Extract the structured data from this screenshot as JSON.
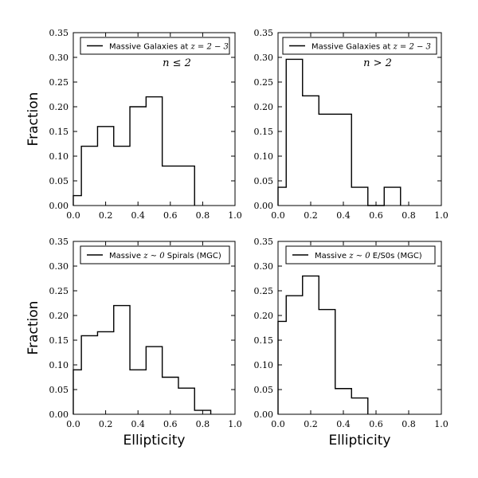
{
  "figure": {
    "ylabel": "Fraction",
    "xlabel": "Ellipticity"
  },
  "chart_data": [
    {
      "type": "histogram-step",
      "panel": "top-left",
      "legend": {
        "prefix": "Massive Galaxies at ",
        "math": "z = 2 − 3"
      },
      "annotation": "n ≤ 2",
      "bin_edges": [
        0.0,
        0.05,
        0.15,
        0.25,
        0.35,
        0.45,
        0.55,
        0.65,
        0.75
      ],
      "values": [
        0.02,
        0.12,
        0.16,
        0.12,
        0.2,
        0.22,
        0.08,
        0.08
      ],
      "xlim": [
        0.0,
        1.0
      ],
      "ylim": [
        0.0,
        0.35
      ],
      "xticks": [
        "0.0",
        "0.2",
        "0.4",
        "0.6",
        "0.8",
        "1.0"
      ],
      "yticks": [
        "0.00",
        "0.05",
        "0.10",
        "0.15",
        "0.20",
        "0.25",
        "0.30",
        "0.35"
      ],
      "ylabel": "Fraction",
      "xlabel": ""
    },
    {
      "type": "histogram-step",
      "panel": "top-right",
      "legend": {
        "prefix": "Massive Galaxies at ",
        "math": "z = 2 − 3"
      },
      "annotation": "n > 2",
      "bin_edges": [
        0.0,
        0.05,
        0.15,
        0.25,
        0.35,
        0.45,
        0.55,
        0.65,
        0.75
      ],
      "values": [
        0.037,
        0.296,
        0.222,
        0.185,
        0.185,
        0.037,
        0.0,
        0.037
      ],
      "xlim": [
        0.0,
        1.0
      ],
      "ylim": [
        0.0,
        0.35
      ],
      "xticks": [
        "0.0",
        "0.2",
        "0.4",
        "0.6",
        "0.8",
        "1.0"
      ],
      "yticks": [
        "0.00",
        "0.05",
        "0.10",
        "0.15",
        "0.20",
        "0.25",
        "0.30",
        "0.35"
      ],
      "ylabel": "",
      "xlabel": ""
    },
    {
      "type": "histogram-step",
      "panel": "bottom-left",
      "legend": {
        "prefix": "Massive ",
        "math": "z ∼ 0",
        "suffix": " Spirals  (MGC)"
      },
      "annotation": "",
      "bin_edges": [
        0.0,
        0.05,
        0.15,
        0.25,
        0.35,
        0.45,
        0.55,
        0.65,
        0.75,
        0.85
      ],
      "values": [
        0.09,
        0.159,
        0.167,
        0.22,
        0.09,
        0.137,
        0.075,
        0.053,
        0.008
      ],
      "xlim": [
        0.0,
        1.0
      ],
      "ylim": [
        0.0,
        0.35
      ],
      "xticks": [
        "0.0",
        "0.2",
        "0.4",
        "0.6",
        "0.8",
        "1.0"
      ],
      "yticks": [
        "0.00",
        "0.05",
        "0.10",
        "0.15",
        "0.20",
        "0.25",
        "0.30",
        "0.35"
      ],
      "ylabel": "Fraction",
      "xlabel": "Ellipticity"
    },
    {
      "type": "histogram-step",
      "panel": "bottom-right",
      "legend": {
        "prefix": "Massive ",
        "math": "z ∼ 0",
        "suffix": " E/S0s  (MGC)"
      },
      "annotation": "",
      "bin_edges": [
        0.0,
        0.05,
        0.15,
        0.25,
        0.35,
        0.45,
        0.55
      ],
      "values": [
        0.188,
        0.24,
        0.28,
        0.212,
        0.052,
        0.033
      ],
      "xlim": [
        0.0,
        1.0
      ],
      "ylim": [
        0.0,
        0.35
      ],
      "xticks": [
        "0.0",
        "0.2",
        "0.4",
        "0.6",
        "0.8",
        "1.0"
      ],
      "yticks": [
        "0.00",
        "0.05",
        "0.10",
        "0.15",
        "0.20",
        "0.25",
        "0.30",
        "0.35"
      ],
      "ylabel": "",
      "xlabel": "Ellipticity"
    }
  ]
}
